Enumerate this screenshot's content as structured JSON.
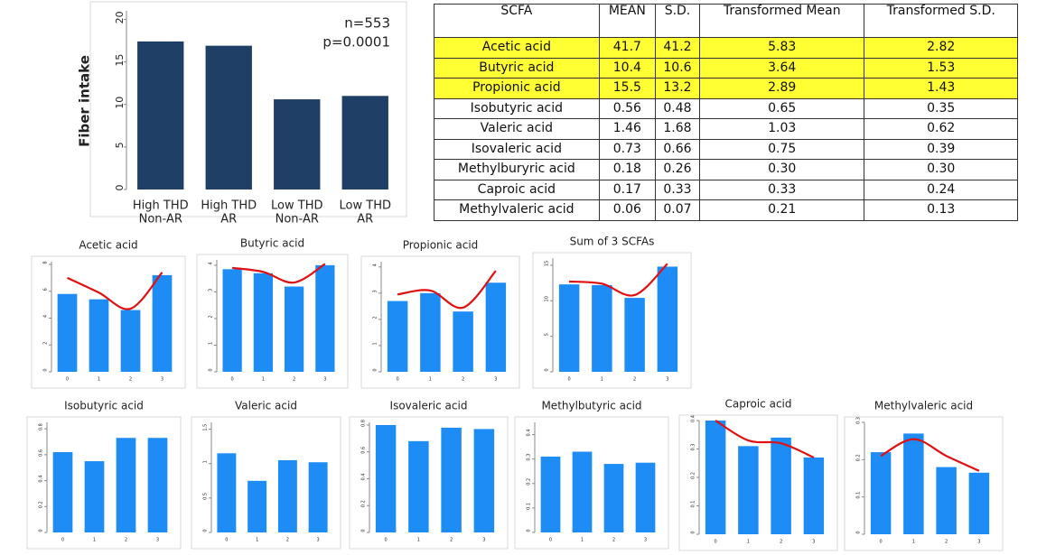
{
  "chart_data": [
    {
      "type": "bar",
      "y_label": "Fiber intake",
      "annotations": [
        "n=553",
        "p=0.0001"
      ],
      "categories": [
        [
          "High THD",
          "Non-AR"
        ],
        [
          "High THD",
          "AR"
        ],
        [
          "Low THD",
          "Non-AR"
        ],
        [
          "Low THD",
          "AR"
        ]
      ],
      "values": [
        17.4,
        16.9,
        10.6,
        11.0
      ],
      "color": "#1f3f66",
      "ylim": [
        0,
        21
      ],
      "yticks": [
        0,
        5,
        10,
        15,
        20
      ]
    },
    {
      "type": "bar",
      "title": "Acetic acid",
      "categories": [
        "0",
        "1",
        "2",
        "3"
      ],
      "values": [
        5.8,
        5.4,
        4.6,
        7.2
      ],
      "color": "#1e8cf5",
      "ylim": [
        0,
        8.2
      ],
      "yticks": [
        0,
        2,
        4,
        6,
        8
      ],
      "trend": {
        "color": "#e01010",
        "values": [
          7.0,
          5.9,
          4.7,
          7.4
        ]
      }
    },
    {
      "type": "bar",
      "title": "Butyric acid",
      "categories": [
        "0",
        "1",
        "2",
        "3"
      ],
      "values": [
        3.85,
        3.7,
        3.2,
        4.0
      ],
      "color": "#1e8cf5",
      "ylim": [
        0,
        4.2
      ],
      "yticks": [
        0,
        1,
        2,
        3,
        4
      ],
      "trend": {
        "color": "#e01010",
        "values": [
          3.9,
          3.75,
          3.35,
          4.05
        ]
      }
    },
    {
      "type": "bar",
      "title": "Propionic acid",
      "categories": [
        "0",
        "1",
        "2",
        "3"
      ],
      "values": [
        2.7,
        3.0,
        2.3,
        3.4
      ],
      "color": "#1e8cf5",
      "ylim": [
        0,
        4.2
      ],
      "yticks": [
        0,
        1,
        2,
        3,
        4
      ],
      "trend": {
        "color": "#e01010",
        "values": [
          2.95,
          3.1,
          2.45,
          3.85
        ]
      }
    },
    {
      "type": "bar",
      "title": "Sum of 3 SCFAs",
      "categories": [
        "0",
        "1",
        "2",
        "3"
      ],
      "values": [
        12.3,
        12.2,
        10.4,
        14.8
      ],
      "color": "#1e8cf5",
      "ylim": [
        0,
        16
      ],
      "yticks": [
        0,
        5,
        10,
        15
      ],
      "trend": {
        "color": "#e01010",
        "values": [
          12.7,
          12.4,
          10.8,
          15.2
        ]
      }
    },
    {
      "type": "bar",
      "title": "Isobutyric acid",
      "categories": [
        "0",
        "1",
        "2",
        "3"
      ],
      "values": [
        0.62,
        0.55,
        0.73,
        0.73
      ],
      "color": "#1e8cf5",
      "ylim": [
        0,
        0.85
      ],
      "yticks": [
        0,
        0.2,
        0.4,
        0.6,
        0.8
      ]
    },
    {
      "type": "bar",
      "title": "Valeric acid",
      "categories": [
        "0",
        "1",
        "2",
        "3"
      ],
      "values": [
        1.15,
        0.75,
        1.05,
        1.02
      ],
      "color": "#1e8cf5",
      "ylim": [
        0,
        1.6
      ],
      "yticks": [
        0,
        0.5,
        1,
        1.5
      ]
    },
    {
      "type": "bar",
      "title": "Isovaleric acid",
      "categories": [
        "0",
        "1",
        "2",
        "3"
      ],
      "values": [
        0.8,
        0.68,
        0.78,
        0.77
      ],
      "color": "#1e8cf5",
      "ylim": [
        0,
        0.82
      ],
      "yticks": [
        0,
        0.2,
        0.4,
        0.6,
        0.8
      ]
    },
    {
      "type": "bar",
      "title": "Methylbutyric acid",
      "categories": [
        "0",
        "1",
        "2",
        "3"
      ],
      "values": [
        0.31,
        0.33,
        0.28,
        0.285
      ],
      "color": "#1e8cf5",
      "ylim": [
        0,
        0.45
      ],
      "yticks": [
        0,
        0.1,
        0.2,
        0.3,
        0.4
      ]
    },
    {
      "type": "bar",
      "title": "Caproic acid",
      "categories": [
        "0",
        "1",
        "2",
        "3"
      ],
      "values": [
        0.4,
        0.31,
        0.34,
        0.27
      ],
      "color": "#1e8cf5",
      "ylim": [
        0,
        0.4
      ],
      "yticks": [
        0,
        0.1,
        0.2,
        0.3,
        0.4
      ],
      "trend": {
        "color": "#e01010",
        "values": [
          0.4,
          0.33,
          0.32,
          0.27
        ]
      }
    },
    {
      "type": "bar",
      "title": "Methylvaleric acid",
      "categories": [
        "0",
        "1",
        "2",
        "3"
      ],
      "values": [
        0.22,
        0.27,
        0.18,
        0.165
      ],
      "color": "#1e8cf5",
      "ylim": [
        0,
        0.3
      ],
      "yticks": [
        0,
        0.1,
        0.2,
        0.3
      ],
      "trend": {
        "color": "#e01010",
        "values": [
          0.21,
          0.255,
          0.21,
          0.17
        ]
      }
    }
  ],
  "table": {
    "header": [
      "SCFA",
      "MEAN",
      "S.D.",
      "Transformed Mean",
      "Transformed S.D."
    ],
    "rows": [
      [
        "Acetic acid",
        "41.7",
        "41.2",
        "5.83",
        "2.82"
      ],
      [
        "Butyric acid",
        "10.4",
        "10.6",
        "3.64",
        "1.53"
      ],
      [
        "Propionic acid",
        "15.5",
        "13.2",
        "2.89",
        "1.43"
      ],
      [
        "Isobutyric acid",
        "0.56",
        "0.48",
        "0.65",
        "0.35"
      ],
      [
        "Valeric acid",
        "1.46",
        "1.68",
        "1.03",
        "0.62"
      ],
      [
        "Isovaleric acid",
        "0.73",
        "0.66",
        "0.75",
        "0.39"
      ],
      [
        "Methylburyric acid",
        "0.18",
        "0.26",
        "0.30",
        "0.30"
      ],
      [
        "Caproic acid",
        "0.17",
        "0.33",
        "0.33",
        "0.24"
      ],
      [
        "Methylvaleric acid",
        "0.06",
        "0.07",
        "0.21",
        "0.13"
      ]
    ],
    "highlight_rows": [
      0,
      1,
      2
    ],
    "highlight_color": "#ffff33"
  }
}
